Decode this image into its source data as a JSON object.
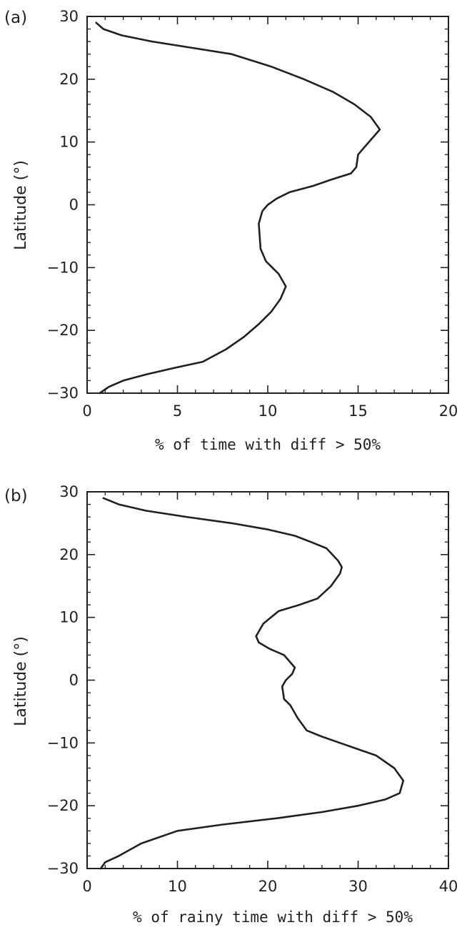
{
  "chart_data": [
    {
      "type": "line",
      "panel_label": "(a)",
      "xlabel": "% of time with diff > 50%",
      "ylabel": "Latitude (°)",
      "xlim": [
        0,
        20
      ],
      "ylim": [
        -30,
        30
      ],
      "xticks": [
        "0",
        "5",
        "10",
        "15",
        "20"
      ],
      "yticks": [
        "30",
        "20",
        "10",
        "0",
        "−10",
        "−20",
        "−30"
      ],
      "grid": false,
      "line_color": "#231f20",
      "series": [
        {
          "x": [
            0.5,
            0.9,
            1.9,
            3.6,
            5.8,
            8.0,
            10.2,
            12.0,
            13.6,
            14.8,
            15.7,
            16.2,
            15.9,
            15.3,
            15.0,
            14.9,
            14.6,
            13.5,
            12.5,
            11.2,
            10.5,
            10.0,
            9.7,
            9.5,
            9.6,
            9.9,
            10.6,
            11.0,
            10.7,
            10.2,
            9.5,
            8.7,
            7.7,
            6.4,
            4.8,
            3.3,
            2.0,
            1.2,
            0.7
          ],
          "y": [
            29,
            28,
            27,
            26,
            25,
            24,
            22,
            20,
            18,
            16,
            14,
            12,
            11,
            9,
            8,
            6,
            5,
            4,
            3,
            2,
            1,
            0,
            -1,
            -3,
            -7,
            -9,
            -11,
            -13,
            -15,
            -17,
            -19,
            -21,
            -23,
            -25,
            -26,
            -27,
            -28,
            -29,
            -30
          ]
        }
      ]
    },
    {
      "type": "line",
      "panel_label": "(b)",
      "xlabel": "% of rainy time with diff > 50%",
      "ylabel": "Latitude (°)",
      "xlim": [
        0,
        40
      ],
      "ylim": [
        -30,
        30
      ],
      "xticks": [
        "0",
        "10",
        "20",
        "30",
        "40"
      ],
      "yticks": [
        "30",
        "20",
        "10",
        "0",
        "−10",
        "−20",
        "−30"
      ],
      "grid": false,
      "line_color": "#231f20",
      "series": [
        {
          "x": [
            1.8,
            3.5,
            6.5,
            11.0,
            16.0,
            20.0,
            23.0,
            24.8,
            26.5,
            27.8,
            28.2,
            28.0,
            27.0,
            25.5,
            23.5,
            21.2,
            19.5,
            18.7,
            19.0,
            20.2,
            21.8,
            23.0,
            22.7,
            22.0,
            21.6,
            21.8,
            22.5,
            23.3,
            24.3,
            26.0,
            28.0,
            30.0,
            32.0,
            34.0,
            35.0,
            34.6,
            33.0,
            30.0,
            26.0,
            21.0,
            15.0,
            10.0,
            6.0,
            3.5,
            2.0,
            1.5
          ],
          "y": [
            29,
            28,
            27,
            26,
            25,
            24,
            23,
            22,
            21,
            19,
            18,
            17,
            15,
            13,
            12,
            11,
            9,
            7,
            6,
            5,
            4,
            2,
            1,
            0,
            -1,
            -3,
            -4,
            -6,
            -8,
            -9,
            -10,
            -11,
            -12,
            -14,
            -16,
            -18,
            -19,
            -20,
            -21,
            -22,
            -23,
            -24,
            -26,
            -28,
            -29,
            -30
          ]
        }
      ]
    }
  ]
}
